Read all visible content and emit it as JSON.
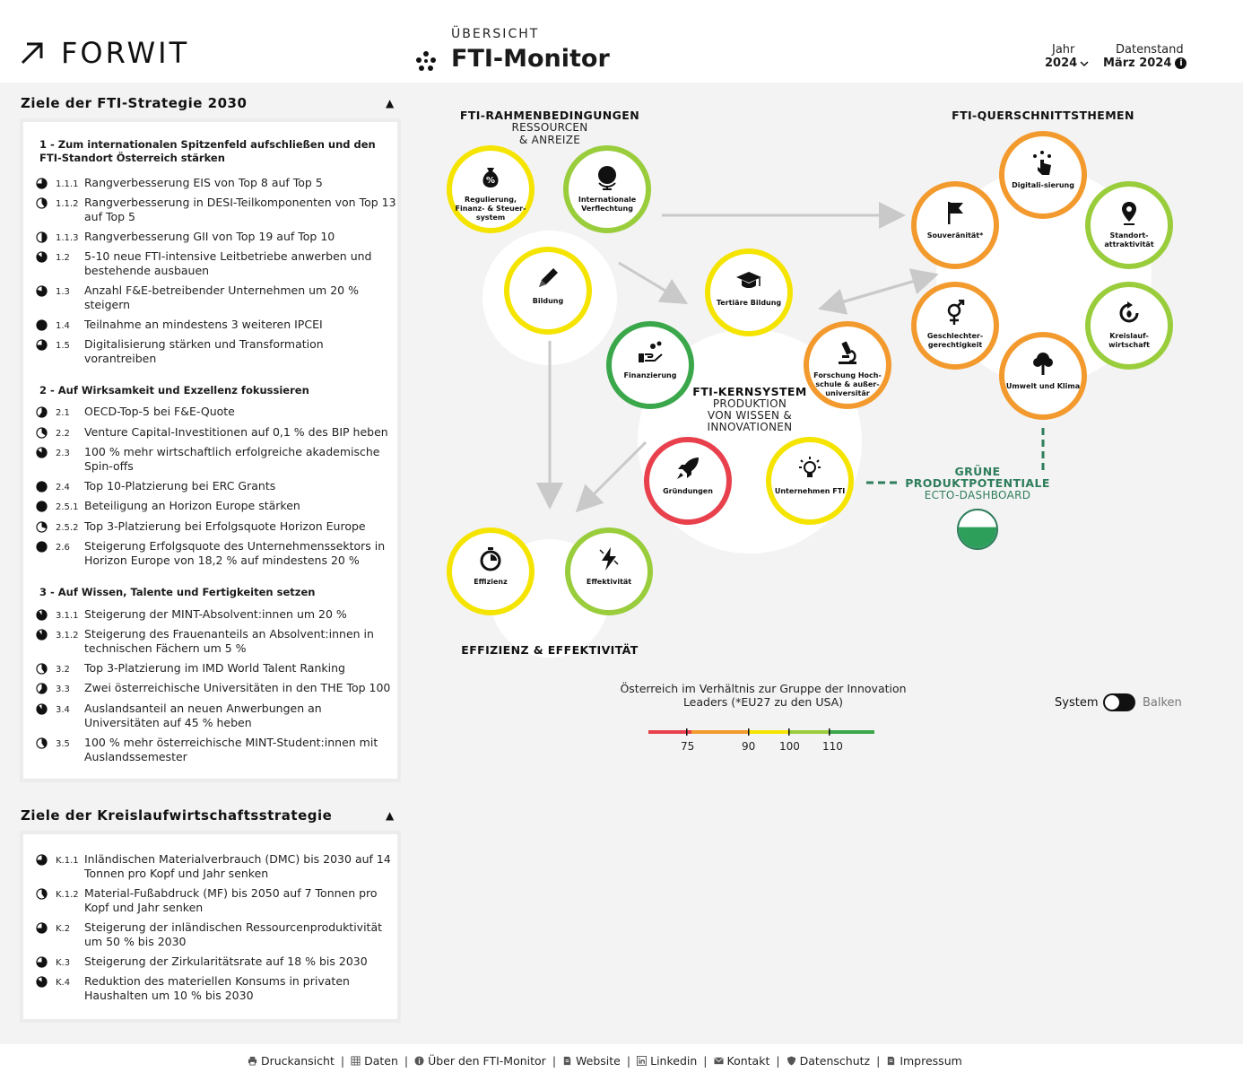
{
  "brand": {
    "logo_text": "FORWIT"
  },
  "header": {
    "kicker": "ÜBERSICHT",
    "title": "FTI-Monitor",
    "year_label": "Jahr",
    "year_value": "2024",
    "date_label": "Datenstand",
    "date_value": "März 2024",
    "info_glyph": "i"
  },
  "fti_panel": {
    "title": "Ziele der FTI-Strategie 2030",
    "toggle": "▲",
    "groups": [
      {
        "heading": "1 - Zum internationalen Spitzenfeld aufschließen und den FTI-Standort Österreich stärken",
        "items": [
          {
            "code": "1.1.1",
            "text": "Rangverbesserung EIS von Top 8 auf Top 5",
            "progress": 0.75
          },
          {
            "code": "1.1.2",
            "text": "Rangverbesserung in DESI-Teilkomponenten von Top 13 auf Top 5",
            "progress": 0.4
          },
          {
            "code": "1.1.3",
            "text": "Rangverbesserung GII von Top 19 auf Top 10",
            "progress": 0.5
          },
          {
            "code": "1.2",
            "text": "5-10 neue FTI-intensive Leitbetriebe anwerben und bestehende ausbauen",
            "progress": 0.85
          },
          {
            "code": "1.3",
            "text": "Anzahl F&E-betreibender Unternehmen um 20 % steigern",
            "progress": 0.8
          },
          {
            "code": "1.4",
            "text": "Teilnahme an mindestens 3 weiteren IPCEI",
            "progress": 1.0
          },
          {
            "code": "1.5",
            "text": "Digitalisierung stärken und Transformation vorantreiben",
            "progress": 0.75
          }
        ]
      },
      {
        "heading": "2 - Auf Wirksamkeit und Exzellenz fokussieren",
        "items": [
          {
            "code": "2.1",
            "text": "OECD-Top-5 bei F&E-Quote",
            "progress": 0.6
          },
          {
            "code": "2.2",
            "text": "Venture Capital-Investitionen auf 0,1 % des BIP heben",
            "progress": 0.35
          },
          {
            "code": "2.3",
            "text": "100 % mehr wirtschaftlich erfolgreiche akademische Spin-offs",
            "progress": 0.85
          },
          {
            "code": "2.4",
            "text": "Top 10-Platzierung bei ERC Grants",
            "progress": 1.0
          },
          {
            "code": "2.5.1",
            "text": "Beteiligung an Horizon Europe stärken",
            "progress": 1.0
          },
          {
            "code": "2.5.2",
            "text": "Top 3-Platzierung bei Erfolgsquote Horizon Europe",
            "progress": 0.3
          },
          {
            "code": "2.6",
            "text": "Steigerung Erfolgsquote des Unternehmenssektors in Horizon Europe von 18,2 % auf mindestens 20 %",
            "progress": 1.0
          }
        ]
      },
      {
        "heading": "3 - Auf Wissen, Talente und Fertigkeiten setzen",
        "items": [
          {
            "code": "3.1.1",
            "text": "Steigerung der MINT-Absolvent:innen um 20 %",
            "progress": 0.9
          },
          {
            "code": "3.1.2",
            "text": "Steigerung des Frauenanteils an Absolvent:innen in technischen Fächern um 5 %",
            "progress": 0.9
          },
          {
            "code": "3.2",
            "text": "Top 3-Platzierung im IMD World Talent Ranking",
            "progress": 0.4
          },
          {
            "code": "3.3",
            "text": "Zwei österreichische Universitäten in den THE Top 100",
            "progress": 0.6
          },
          {
            "code": "3.4",
            "text": "Auslandsanteil an neuen Anwerbungen an Universitäten auf 45 % heben",
            "progress": 0.9
          },
          {
            "code": "3.5",
            "text": "100 % mehr österreichische MINT-Student:innen mit Auslandssemester",
            "progress": 0.4
          }
        ]
      }
    ]
  },
  "kw_panel": {
    "title": "Ziele der Kreislaufwirtschaftsstrategie",
    "toggle": "▲",
    "items": [
      {
        "code": "K.1.1",
        "text": "Inländischen Materialverbrauch (DMC) bis 2030 auf 14 Tonnen pro Kopf und Jahr senken",
        "progress": 0.75
      },
      {
        "code": "K.1.2",
        "text": "Material-Fußabdruck (MF) bis 2050 auf 7 Tonnen pro Kopf und Jahr senken",
        "progress": 0.4
      },
      {
        "code": "K.2",
        "text": "Steigerung der inländischen Ressourcenproduktivität um 50 % bis 2030",
        "progress": 0.75
      },
      {
        "code": "K.3",
        "text": "Steigerung der Zirkularitätsrate auf 18 % bis 2030",
        "progress": 0.75
      },
      {
        "code": "K.4",
        "text": "Reduktion des materiellen Konsums in privaten Haushalten um 10 % bis 2030",
        "progress": 0.85
      }
    ]
  },
  "diagram": {
    "rahmen_title": "FTI-RAHMENBEDINGUNGEN",
    "rahmen_sub1": "RESSOURCEN",
    "rahmen_sub2": "& ANREIZE",
    "quer_title": "FTI-QUERSCHNITTSTHEMEN",
    "kern_title": "FTI-KERNSYSTEM",
    "kern_sub1": "PRODUKTION",
    "kern_sub2": "VON WISSEN &",
    "kern_sub3": "INNOVATIONEN",
    "eff_title": "EFFIZIENZ & EFFEKTIVITÄT",
    "green_title1": "GRÜNE",
    "green_title2": "PRODUKTPOTENTIALE",
    "green_sub": "ECTO-DASHBOARD",
    "nodes": {
      "regulierung": {
        "label": "Regulierung, Finanz- & Steuer-system",
        "icon": "money-bag-percent-icon",
        "color": "#f5e400"
      },
      "international": {
        "label": "Internationale Verflechtung",
        "icon": "globe-icon",
        "color": "#9acd3c"
      },
      "bildung": {
        "label": "Bildung",
        "icon": "pencil-icon",
        "color": "#f5e400"
      },
      "tertiaer": {
        "label": "Tertiäre Bildung",
        "icon": "graduation-cap-icon",
        "color": "#f5e400"
      },
      "finanzierung": {
        "label": "Finanzierung",
        "icon": "hand-coins-icon",
        "color": "#3aa84a"
      },
      "forschung": {
        "label": "Forschung Hoch-schule & außer-universitär",
        "icon": "microscope-icon",
        "color": "#f39a2e"
      },
      "gruendungen": {
        "label": "Gründungen",
        "icon": "rocket-icon",
        "color": "#e8414d"
      },
      "unternehmen": {
        "label": "Unternehmen FTI",
        "icon": "lightbulb-icon",
        "color": "#f5e400"
      },
      "effizienz": {
        "label": "Effizienz",
        "icon": "stopwatch-icon",
        "color": "#f5e400"
      },
      "effektivitaet": {
        "label": "Effektivität",
        "icon": "lightning-icon",
        "color": "#9acd3c"
      },
      "digitalisierung": {
        "label": "Digitali-sierung",
        "icon": "touch-hand-icon",
        "color": "#f39a2e"
      },
      "souveraenitaet": {
        "label": "Souveränität*",
        "icon": "flag-icon",
        "color": "#f39a2e"
      },
      "standort": {
        "label": "Standort-attraktivität",
        "icon": "location-pin-icon",
        "color": "#9acd3c"
      },
      "geschlechter": {
        "label": "Geschlechter-gerechtigkeit",
        "icon": "gender-icon",
        "color": "#f39a2e"
      },
      "kreislauf": {
        "label": "Kreislauf-wirtschaft",
        "icon": "recycle-icon",
        "color": "#9acd3c"
      },
      "umwelt": {
        "label": "Umwelt und Klima",
        "icon": "tree-icon",
        "color": "#f39a2e"
      }
    },
    "green_gauge": 0.55
  },
  "legend": {
    "text": "Österreich im Verhältnis zur Gruppe der Innovation Leaders (*EU27 zu den USA)",
    "ticks": [
      "75",
      "90",
      "100",
      "110"
    ],
    "colors": [
      "#e8414d",
      "#f39a2e",
      "#f5e400",
      "#9acd3c",
      "#3aa84a"
    ]
  },
  "view_toggle": {
    "left": "System",
    "right": "Balken"
  },
  "footer": {
    "links": [
      {
        "label": "Druckansicht",
        "icon": "printer-icon"
      },
      {
        "label": "Daten",
        "icon": "table-icon"
      },
      {
        "label": "Über den FTI-Monitor",
        "icon": "info-icon"
      },
      {
        "label": "Website",
        "icon": "document-icon"
      },
      {
        "label": "Linkedin",
        "icon": "linkedin-icon"
      },
      {
        "label": "Kontakt",
        "icon": "mail-icon"
      },
      {
        "label": "Datenschutz",
        "icon": "shield-icon"
      },
      {
        "label": "Impressum",
        "icon": "document-icon"
      }
    ]
  }
}
